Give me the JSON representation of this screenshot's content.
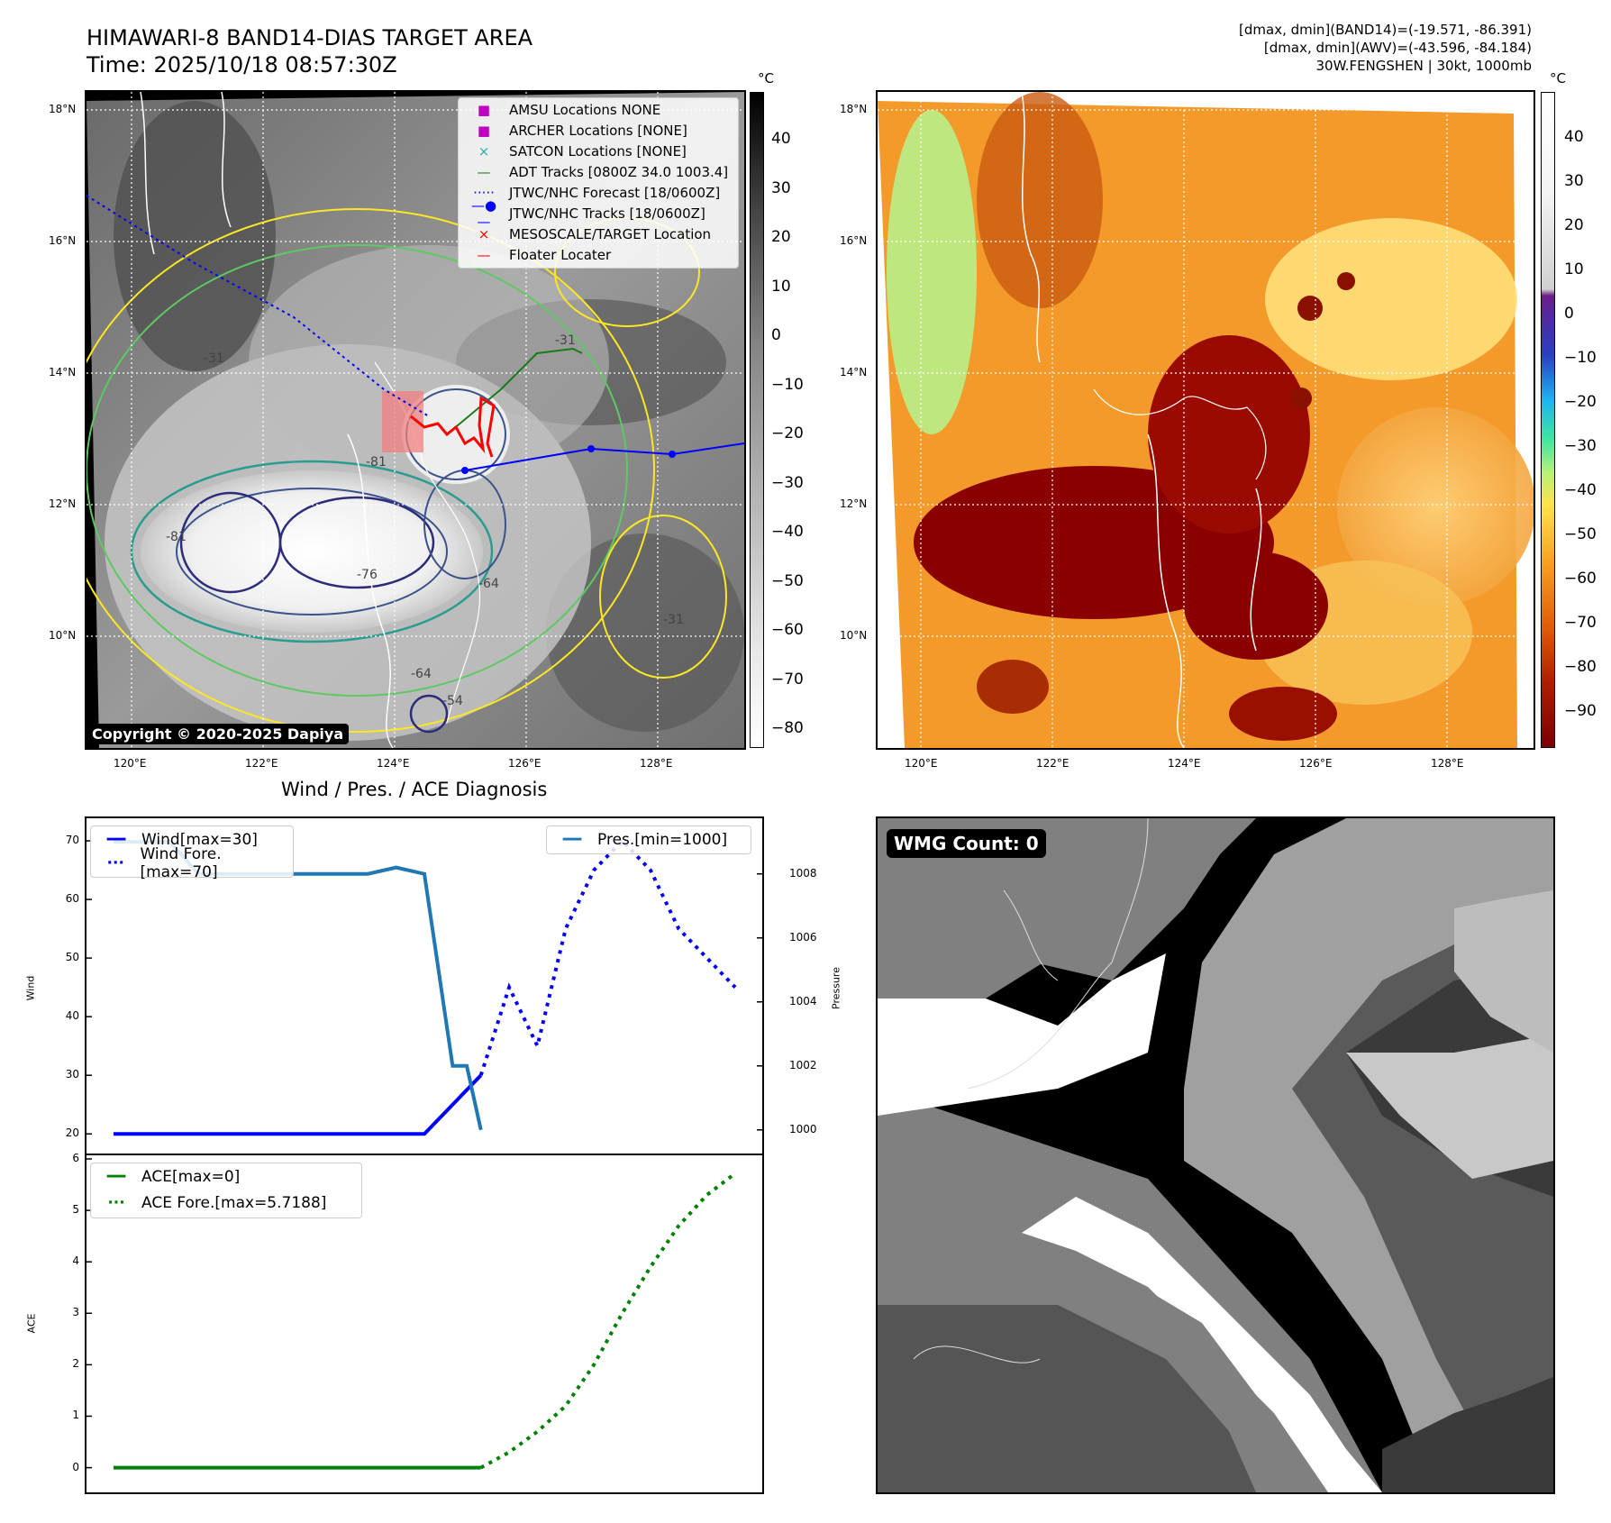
{
  "header": {
    "title_line1": "HIMAWARI-8 BAND14-DIAS TARGET AREA",
    "title_line2": "Time: 2025/10/18 08:57:30Z",
    "info_line1": "[dmax, dmin](BAND14)=(-19.571, -86.391)",
    "info_line2": "[dmax, dmin](AWV)=(-43.596, -84.184)",
    "info_line3": "30W.FENGSHEN | 30kt, 1000mb"
  },
  "map_axes": {
    "lon_labels": [
      "120°E",
      "122°E",
      "124°E",
      "126°E",
      "128°E"
    ],
    "lat_labels": [
      "18°N",
      "16°N",
      "14°N",
      "12°N",
      "10°N"
    ]
  },
  "colorbar_gray": {
    "unit": "°C",
    "ticks": [
      "40",
      "30",
      "20",
      "10",
      "0",
      "−10",
      "−20",
      "−30",
      "−40",
      "−50",
      "−60",
      "−70",
      "−80"
    ]
  },
  "colorbar_color": {
    "unit": "°C",
    "ticks": [
      "40",
      "30",
      "20",
      "10",
      "0",
      "−10",
      "−20",
      "−30",
      "−40",
      "−50",
      "−60",
      "−70",
      "−80",
      "−90"
    ]
  },
  "legend": {
    "items": [
      {
        "label": "AMSU Locations NONE",
        "symbol": "■",
        "color": "#c000c0"
      },
      {
        "label": "ARCHER Locations [NONE]",
        "symbol": "■",
        "color": "#c000c0"
      },
      {
        "label": "SATCON Locations [NONE]",
        "symbol": "×",
        "color": "#20b2aa"
      },
      {
        "label": "ADT Tracks [0800Z 34.0 1003.4]",
        "symbol": "—",
        "color": "#1a7a1a"
      },
      {
        "label": "JTWC/NHC Forecast [18/0600Z]",
        "symbol": "·····",
        "color": "#0000ff"
      },
      {
        "label": "JTWC/NHC Tracks [18/0600Z]",
        "symbol": "—●—",
        "color": "#0000ff"
      },
      {
        "label": "MESOSCALE/TARGET Location",
        "symbol": "×",
        "color": "#ff0000"
      },
      {
        "label": "Floater Locater",
        "symbol": "—",
        "color": "#ff0000"
      }
    ]
  },
  "copyright": "Copyright © 2020-2025 Dapiya",
  "contour_labels": [
    "-81",
    "-81",
    "-76",
    "-64",
    "-54",
    "-31",
    "-31",
    "-31",
    "-64"
  ],
  "diagnosis": {
    "title": "Wind / Pres. / ACE Diagnosis",
    "wind_ylabel": "Wind",
    "pres_ylabel": "Pressure",
    "ace_ylabel": "ACE",
    "legend_wind": "Wind[max=30]",
    "legend_wind_fore": "Wind Fore.[max=70]",
    "legend_pres": "Pres.[min=1000]",
    "legend_ace": "ACE[max=0]",
    "legend_ace_fore": "ACE Fore.[max=5.7188]"
  },
  "wmg_label": "WMG Count: 0",
  "chart_data": [
    {
      "type": "line",
      "title": "Wind / Pres. / ACE Diagnosis",
      "ylabel": "Wind",
      "ylim": [
        18.5,
        72
      ],
      "yticks": [
        20,
        30,
        40,
        50,
        60,
        70
      ],
      "xlim": [
        0,
        22
      ],
      "series": [
        {
          "name": "Wind[max=30]",
          "color": "#0000ff",
          "style": "solid",
          "x": [
            0,
            8,
            9,
            10,
            11,
            12,
            13
          ],
          "y": [
            20,
            20,
            20,
            20,
            20,
            25,
            30
          ]
        },
        {
          "name": "Wind Fore.[max=70]",
          "color": "#0000ff",
          "style": "dotted",
          "x": [
            13,
            14,
            15,
            16,
            17,
            18,
            19,
            20,
            21,
            22
          ],
          "y": [
            30,
            45,
            35,
            55,
            65,
            70,
            65,
            55,
            50,
            45
          ]
        }
      ]
    },
    {
      "type": "line",
      "ylabel": "Pressure",
      "ylim": [
        999.6,
        1009.4
      ],
      "yticks": [
        1000,
        1002,
        1004,
        1006,
        1008
      ],
      "series": [
        {
          "name": "Pres.[min=1000]",
          "color": "#1f77b4",
          "style": "solid",
          "x": [
            0,
            1,
            2,
            3,
            4,
            5,
            6,
            7,
            8,
            9,
            10,
            11,
            12,
            12.5,
            13
          ],
          "y": [
            1009,
            1009,
            1009,
            1008,
            1008,
            1008,
            1008,
            1008,
            1008,
            1008,
            1008.2,
            1008,
            1002,
            1002,
            1000
          ]
        }
      ]
    },
    {
      "type": "line",
      "ylabel": "ACE",
      "ylim": [
        -0.2,
        6
      ],
      "yticks": [
        0,
        1,
        2,
        3,
        4,
        5,
        6
      ],
      "series": [
        {
          "name": "ACE[max=0]",
          "color": "#008000",
          "style": "solid",
          "x": [
            0,
            13
          ],
          "y": [
            0,
            0
          ]
        },
        {
          "name": "ACE Fore.[max=5.7188]",
          "color": "#008000",
          "style": "dotted",
          "x": [
            13,
            14,
            15,
            16,
            17,
            18,
            19,
            20,
            21,
            22
          ],
          "y": [
            0,
            0.3,
            0.7,
            1.2,
            2.0,
            3.0,
            3.9,
            4.7,
            5.3,
            5.7188
          ]
        }
      ]
    }
  ]
}
